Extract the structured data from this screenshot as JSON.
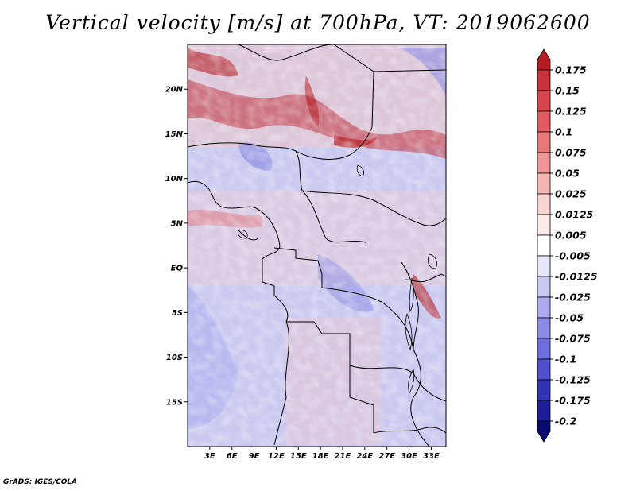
{
  "title": "Vertical velocity [m/s] at 700hPa, VT: 2019062600",
  "credit": "GrADS: IGES/COLA",
  "chart_data": {
    "type": "heatmap",
    "title": "Vertical velocity [m/s] at 700hPa, VT: 2019062600",
    "variable": "Vertical velocity",
    "units": "m/s",
    "level": "700hPa",
    "valid_time": "2019062600",
    "lon_range": [
      0,
      35
    ],
    "lat_range": [
      -20,
      25
    ],
    "lat_ticks": [
      {
        "value": 20,
        "label": "20N"
      },
      {
        "value": 15,
        "label": "15N"
      },
      {
        "value": 10,
        "label": "10N"
      },
      {
        "value": 5,
        "label": "5N"
      },
      {
        "value": 0,
        "label": "EQ"
      },
      {
        "value": -5,
        "label": "5S"
      },
      {
        "value": -10,
        "label": "10S"
      },
      {
        "value": -15,
        "label": "15S"
      }
    ],
    "lon_ticks": [
      {
        "value": 3,
        "label": "3E"
      },
      {
        "value": 6,
        "label": "6E"
      },
      {
        "value": 9,
        "label": "9E"
      },
      {
        "value": 12,
        "label": "12E"
      },
      {
        "value": 15,
        "label": "15E"
      },
      {
        "value": 18,
        "label": "18E"
      },
      {
        "value": 21,
        "label": "21E"
      },
      {
        "value": 24,
        "label": "24E"
      },
      {
        "value": 27,
        "label": "27E"
      },
      {
        "value": 30,
        "label": "30E"
      },
      {
        "value": 33,
        "label": "33E"
      }
    ],
    "colorbar": {
      "levels": [
        "0.175",
        "0.15",
        "0.125",
        "0.1",
        "0.075",
        "0.05",
        "0.025",
        "0.0125",
        "0.005",
        "-0.005",
        "-0.0125",
        "-0.025",
        "-0.05",
        "-0.075",
        "-0.1",
        "-0.125",
        "-0.175",
        "-0.2"
      ],
      "colors": [
        "#b41e22",
        "#c8323a",
        "#d7464c",
        "#e05c62",
        "#e7787a",
        "#ee9697",
        "#f4b6b5",
        "#f9d3d2",
        "#fde9e8",
        "#ffffff",
        "#e6e6fa",
        "#c8c8f2",
        "#aaaaee",
        "#8c8ce6",
        "#6e6edc",
        "#5050cc",
        "#3232b4",
        "#1e1e96",
        "#0a0a70"
      ]
    }
  }
}
